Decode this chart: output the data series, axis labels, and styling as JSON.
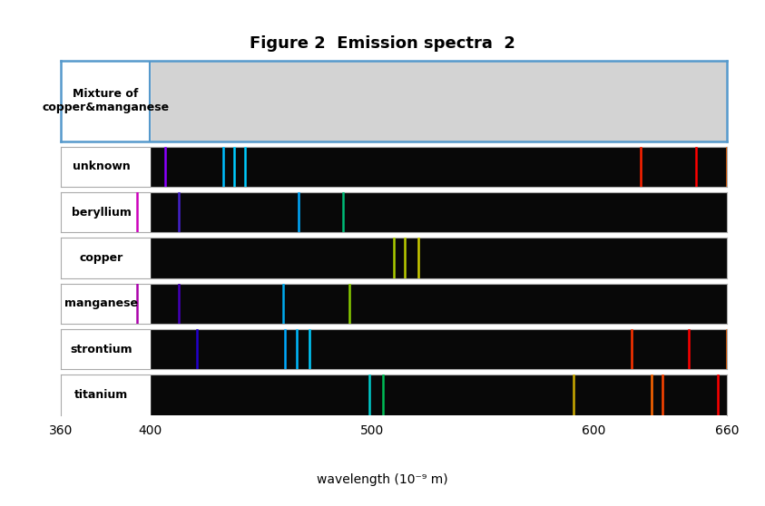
{
  "title": "Figure 2  Emission spectra  2",
  "xlabel": "wavelength (10⁻⁹ m)",
  "xlim": [
    360,
    660
  ],
  "xticks": [
    360,
    400,
    500,
    600,
    660
  ],
  "background_color": "#ffffff",
  "label_split": 400,
  "rows": [
    {
      "label": "Mixture of\ncopper&manganese",
      "lines": [],
      "is_mixture": true
    },
    {
      "label": "unknown",
      "lines": [
        {
          "wavelength": 407,
          "color": "#8B00FF"
        },
        {
          "wavelength": 433,
          "color": "#00BFFF"
        },
        {
          "wavelength": 438,
          "color": "#00CCFF"
        },
        {
          "wavelength": 443,
          "color": "#00CCFF"
        },
        {
          "wavelength": 621,
          "color": "#FF2200"
        },
        {
          "wavelength": 646,
          "color": "#FF0000"
        },
        {
          "wavelength": 660,
          "color": "#FF6600"
        }
      ],
      "is_mixture": false
    },
    {
      "label": "beryllium",
      "lines": [
        {
          "wavelength": 394,
          "color": "#CC00BB"
        },
        {
          "wavelength": 413,
          "color": "#4422CC"
        },
        {
          "wavelength": 467,
          "color": "#00AAFF"
        },
        {
          "wavelength": 487,
          "color": "#00BB77"
        }
      ],
      "is_mixture": false
    },
    {
      "label": "copper",
      "lines": [
        {
          "wavelength": 510,
          "color": "#AACC00"
        },
        {
          "wavelength": 515,
          "color": "#BBCC00"
        },
        {
          "wavelength": 521,
          "color": "#CCCC00"
        }
      ],
      "is_mixture": false
    },
    {
      "label": "manganese",
      "lines": [
        {
          "wavelength": 394,
          "color": "#AA00AA"
        },
        {
          "wavelength": 413,
          "color": "#4400BB"
        },
        {
          "wavelength": 460,
          "color": "#00AAEE"
        },
        {
          "wavelength": 490,
          "color": "#88CC00"
        }
      ],
      "is_mixture": false
    },
    {
      "label": "strontium",
      "lines": [
        {
          "wavelength": 421,
          "color": "#2200CC"
        },
        {
          "wavelength": 461,
          "color": "#00AAFF"
        },
        {
          "wavelength": 466,
          "color": "#00BBFF"
        },
        {
          "wavelength": 472,
          "color": "#00CCFF"
        },
        {
          "wavelength": 617,
          "color": "#FF3300"
        },
        {
          "wavelength": 643,
          "color": "#FF0000"
        },
        {
          "wavelength": 660,
          "color": "#FF6600"
        }
      ],
      "is_mixture": false
    },
    {
      "label": "titanium",
      "lines": [
        {
          "wavelength": 499,
          "color": "#00CCCC"
        },
        {
          "wavelength": 505,
          "color": "#00BB55"
        },
        {
          "wavelength": 591,
          "color": "#CCAA00"
        },
        {
          "wavelength": 626,
          "color": "#FF6600"
        },
        {
          "wavelength": 631,
          "color": "#FF4400"
        },
        {
          "wavelength": 656,
          "color": "#FF0000"
        }
      ],
      "is_mixture": false
    }
  ]
}
